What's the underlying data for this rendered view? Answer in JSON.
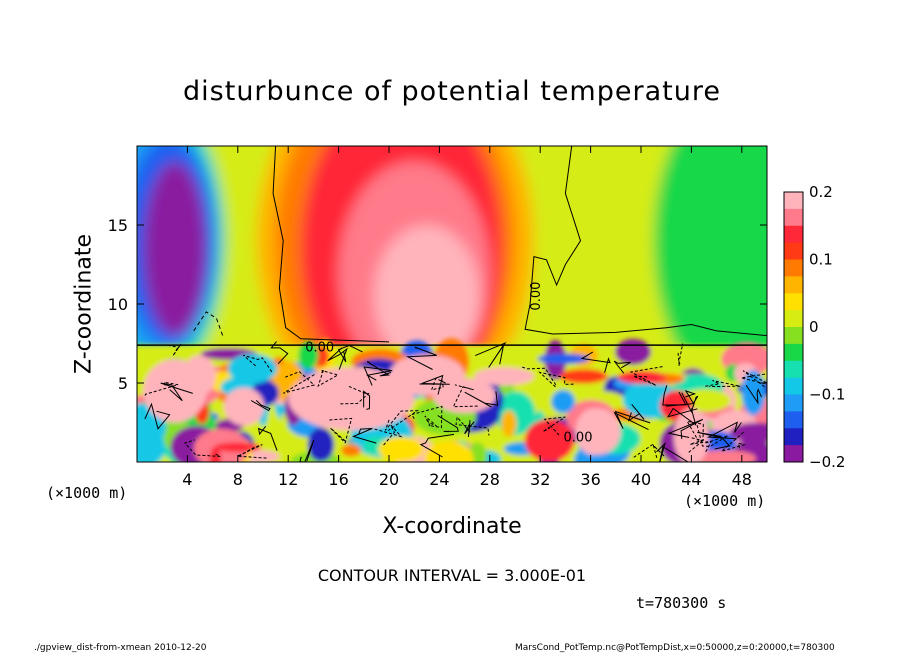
{
  "chart_data": {
    "type": "heatmap",
    "title": "disturbunce of potential temperature",
    "xlabel": "X-coordinate",
    "ylabel": "Z-coordinate",
    "x_unit": "(×1000 m)",
    "y_unit": "(×1000 m)",
    "xlim": [
      0,
      50
    ],
    "ylim": [
      0,
      20
    ],
    "x_ticks": [
      4,
      8,
      12,
      16,
      20,
      24,
      28,
      32,
      36,
      40,
      44,
      48
    ],
    "y_ticks": [
      5,
      10,
      15
    ],
    "colorbar": {
      "range": [
        -0.2,
        0.2
      ],
      "tick_values": [
        0.2,
        0.1,
        0,
        -0.1,
        -0.2
      ],
      "tick_labels": [
        "0.2",
        "0.1",
        "0",
        "−0.1",
        "−0.2"
      ],
      "colors": [
        "#8a1aa0",
        "#2020c0",
        "#1f5ff0",
        "#1f9cf5",
        "#12c8e6",
        "#16e0b0",
        "#18d848",
        "#86e020",
        "#d6ec12",
        "#ffe000",
        "#ffb400",
        "#ff7a00",
        "#ff3a14",
        "#ff2838",
        "#ff7a8a",
        "#ffb4bc"
      ]
    },
    "contour_labels": [
      "0.00",
      "0.00",
      "0.00"
    ],
    "contour_interval": "CONTOUR INTERVAL = 3.000E-01",
    "time": "t=780300 s",
    "lower_layer_top": 7.4,
    "grid": false
  },
  "footer": {
    "left": "./gpview_dist-from-xmean  2010-12-20",
    "right": "MarsCond_PotTemp.nc@PotTempDist,x=0:50000,z=0:20000,t=780300"
  },
  "colors": {
    "frame": "#000000",
    "background": "#ffffff"
  }
}
